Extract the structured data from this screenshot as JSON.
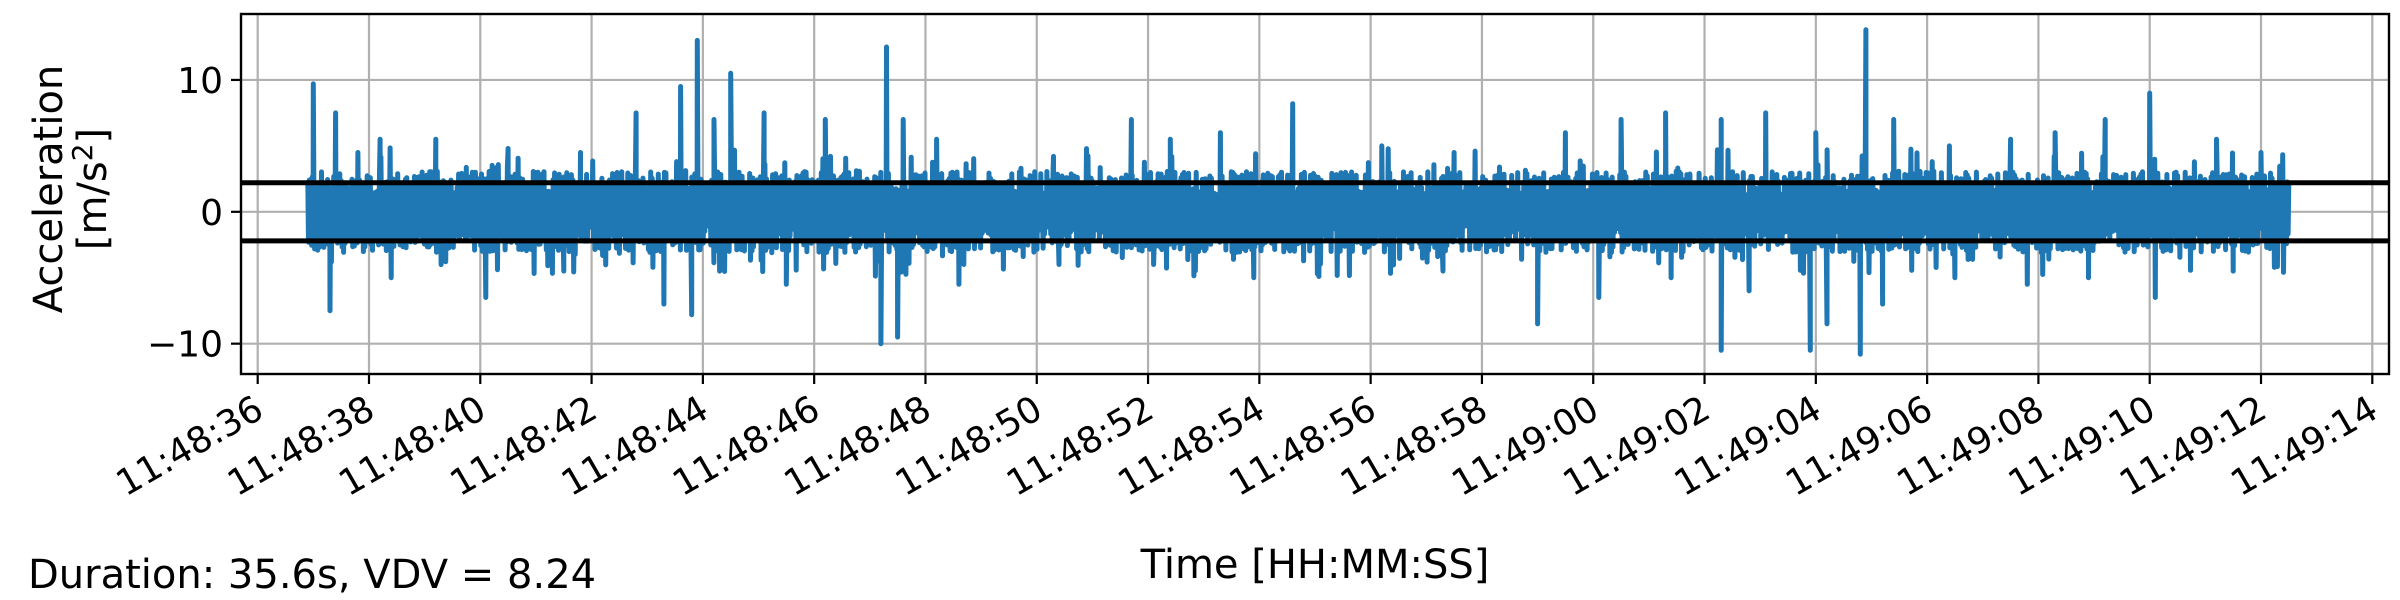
{
  "chart_data": {
    "type": "line",
    "xlabel": "Time [HH:MM:SS]",
    "ylabel_line1": "Acceleration",
    "ylabel_line2_prefix": "[m/s",
    "ylabel_line2_sup": "2",
    "ylabel_line2_suffix": "]",
    "x_start": "11:48:36.9",
    "x_end": "11:49:12.5",
    "xlim": [
      "11:48:35.7",
      "11:49:14.3"
    ],
    "ylim": [
      -12.3,
      15
    ],
    "x_ticks": [
      "11:48:36",
      "11:48:38",
      "11:48:40",
      "11:48:42",
      "11:48:44",
      "11:48:46",
      "11:48:48",
      "11:48:50",
      "11:48:52",
      "11:48:54",
      "11:48:56",
      "11:48:58",
      "11:49:00",
      "11:49:02",
      "11:49:04",
      "11:49:06",
      "11:49:08",
      "11:49:10",
      "11:49:12",
      "11:49:14"
    ],
    "y_ticks": [
      10,
      0,
      -10
    ],
    "y_tick_labels": [
      "10",
      "0",
      "−10"
    ],
    "grid": true,
    "series": [
      {
        "color": "#1f77b4",
        "peaks_positive": [
          {
            "t": "11:48:37.0",
            "y": 9.7
          },
          {
            "t": "11:48:37.4",
            "y": 7.5
          },
          {
            "t": "11:48:37.8",
            "y": 4.5
          },
          {
            "t": "11:48:38.2",
            "y": 5.5
          },
          {
            "t": "11:48:39.2",
            "y": 5.5
          },
          {
            "t": "11:48:40.5",
            "y": 4.8
          },
          {
            "t": "11:48:41.8",
            "y": 4.5
          },
          {
            "t": "11:48:42.8",
            "y": 7.5
          },
          {
            "t": "11:48:43.6",
            "y": 9.5
          },
          {
            "t": "11:48:43.9",
            "y": 13.0
          },
          {
            "t": "11:48:44.2",
            "y": 7.0
          },
          {
            "t": "11:48:44.5",
            "y": 10.5
          },
          {
            "t": "11:48:45.1",
            "y": 7.5
          },
          {
            "t": "11:48:46.2",
            "y": 7.0
          },
          {
            "t": "11:48:47.3",
            "y": 12.5
          },
          {
            "t": "11:48:47.6",
            "y": 7.0
          },
          {
            "t": "11:48:48.2",
            "y": 5.5
          },
          {
            "t": "11:48:50.3",
            "y": 4.2
          },
          {
            "t": "11:48:51.7",
            "y": 7.0
          },
          {
            "t": "11:48:52.4",
            "y": 5.5
          },
          {
            "t": "11:48:53.3",
            "y": 6.0
          },
          {
            "t": "11:48:54.6",
            "y": 8.2
          },
          {
            "t": "11:48:56.2",
            "y": 5.0
          },
          {
            "t": "11:48:57.5",
            "y": 4.5
          },
          {
            "t": "11:48:59.5",
            "y": 6.0
          },
          {
            "t": "11:49:00.5",
            "y": 7.0
          },
          {
            "t": "11:49:01.3",
            "y": 7.5
          },
          {
            "t": "11:49:02.3",
            "y": 7.0
          },
          {
            "t": "11:49:03.1",
            "y": 7.5
          },
          {
            "t": "11:49:04.0",
            "y": 6.0
          },
          {
            "t": "11:49:04.9",
            "y": 13.8
          },
          {
            "t": "11:49:05.4",
            "y": 7.0
          },
          {
            "t": "11:49:06.4",
            "y": 5.0
          },
          {
            "t": "11:49:07.5",
            "y": 5.5
          },
          {
            "t": "11:49:08.3",
            "y": 6.0
          },
          {
            "t": "11:49:09.2",
            "y": 7.0
          },
          {
            "t": "11:49:10.0",
            "y": 9.0
          },
          {
            "t": "11:49:11.2",
            "y": 5.5
          },
          {
            "t": "11:49:12.0",
            "y": 4.5
          }
        ],
        "peaks_negative": [
          {
            "t": "11:48:37.3",
            "y": -7.5
          },
          {
            "t": "11:48:38.4",
            "y": -5.0
          },
          {
            "t": "11:48:40.1",
            "y": -6.5
          },
          {
            "t": "11:48:41.5",
            "y": -4.5
          },
          {
            "t": "11:48:43.3",
            "y": -7.0
          },
          {
            "t": "11:48:43.8",
            "y": -7.8
          },
          {
            "t": "11:48:44.3",
            "y": -4.5
          },
          {
            "t": "11:48:45.5",
            "y": -5.5
          },
          {
            "t": "11:48:47.2",
            "y": -10.0
          },
          {
            "t": "11:48:47.5",
            "y": -9.5
          },
          {
            "t": "11:48:48.6",
            "y": -5.5
          },
          {
            "t": "11:48:50.4",
            "y": -4.0
          },
          {
            "t": "11:48:52.1",
            "y": -4.0
          },
          {
            "t": "11:48:53.9",
            "y": -5.0
          },
          {
            "t": "11:48:55.1",
            "y": -3.5
          },
          {
            "t": "11:48:57.3",
            "y": -4.5
          },
          {
            "t": "11:48:59.0",
            "y": -8.5
          },
          {
            "t": "11:49:00.1",
            "y": -6.5
          },
          {
            "t": "11:49:01.4",
            "y": -5.0
          },
          {
            "t": "11:49:02.3",
            "y": -10.5
          },
          {
            "t": "11:49:02.8",
            "y": -6.0
          },
          {
            "t": "11:49:03.9",
            "y": -10.5
          },
          {
            "t": "11:49:04.2",
            "y": -8.5
          },
          {
            "t": "11:49:04.8",
            "y": -10.8
          },
          {
            "t": "11:49:05.2",
            "y": -7.0
          },
          {
            "t": "11:49:06.5",
            "y": -5.0
          },
          {
            "t": "11:49:07.8",
            "y": -5.5
          },
          {
            "t": "11:49:08.9",
            "y": -5.0
          },
          {
            "t": "11:49:10.1",
            "y": -6.5
          },
          {
            "t": "11:49:11.5",
            "y": -4.5
          }
        ],
        "typical_amplitude": 2.8
      }
    ],
    "hlines": [
      {
        "y": 2.2,
        "color": "#000000"
      },
      {
        "y": -2.2,
        "color": "#000000"
      }
    ],
    "footer_text": "Duration: 35.6s, VDV = 8.24"
  }
}
